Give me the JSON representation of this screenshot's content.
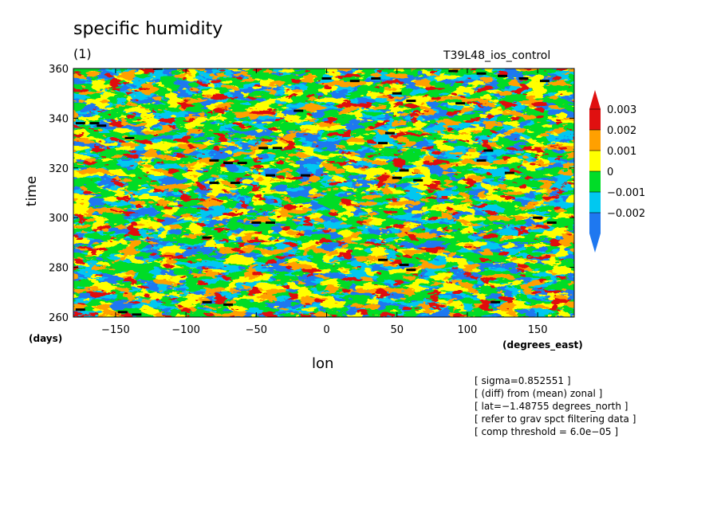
{
  "chart_data": {
    "type": "heatmap",
    "title": "specific humidity",
    "subtitle_left": "(1)",
    "subtitle_right": "T39L48_ios_control",
    "xlabel": "lon",
    "xunit": "(degrees_east)",
    "ylabel": "time",
    "yunit": "(days)",
    "xlim": [
      -180,
      176
    ],
    "ylim": [
      260,
      360
    ],
    "xticks": [
      -150,
      -100,
      -50,
      0,
      50,
      100,
      150
    ],
    "yticks": [
      260,
      280,
      300,
      320,
      340,
      360
    ],
    "colorbar": {
      "labels": [
        "0.003",
        "0.002",
        "0.001",
        "0",
        "−0.001",
        "−0.002"
      ],
      "colors": [
        "#1e78f0",
        "#00c8f0",
        "#00dc28",
        "#ffff00",
        "#ffa000",
        "#e01010"
      ],
      "triangles": {
        "top": "#e01010",
        "bottom": "#1e78f0"
      }
    },
    "notes": [
      "[ sigma=0.852551 ]",
      "[ (diff) from (mean) zonal ]",
      "[ lat=−1.48755 degrees_north ]",
      "[ refer to grav spct filtering data ]",
      "[ comp threshold = 6.0e−05 ]"
    ],
    "markers": [
      {
        "lon": -175,
        "time": 338
      },
      {
        "lon": -165,
        "time": 338
      },
      {
        "lon": -160,
        "time": 337
      },
      {
        "lon": -140,
        "time": 332
      },
      {
        "lon": -120,
        "time": 360
      },
      {
        "lon": -80,
        "time": 323
      },
      {
        "lon": -70,
        "time": 322
      },
      {
        "lon": -60,
        "time": 322
      },
      {
        "lon": -80,
        "time": 314
      },
      {
        "lon": -65,
        "time": 314
      },
      {
        "lon": -45,
        "time": 328
      },
      {
        "lon": -35,
        "time": 328
      },
      {
        "lon": -40,
        "time": 317
      },
      {
        "lon": -15,
        "time": 317
      },
      {
        "lon": -20,
        "time": 343
      },
      {
        "lon": -50,
        "time": 298
      },
      {
        "lon": -40,
        "time": 298
      },
      {
        "lon": -85,
        "time": 292
      },
      {
        "lon": -85,
        "time": 266
      },
      {
        "lon": -70,
        "time": 265
      },
      {
        "lon": -145,
        "time": 262
      },
      {
        "lon": -135,
        "time": 261
      },
      {
        "lon": -175,
        "time": 263
      },
      {
        "lon": 0,
        "time": 356
      },
      {
        "lon": 20,
        "time": 355
      },
      {
        "lon": 35,
        "time": 356
      },
      {
        "lon": 50,
        "time": 350
      },
      {
        "lon": 60,
        "time": 347
      },
      {
        "lon": 45,
        "time": 334
      },
      {
        "lon": 55,
        "time": 319
      },
      {
        "lon": 65,
        "time": 315
      },
      {
        "lon": 50,
        "time": 316
      },
      {
        "lon": 40,
        "time": 330
      },
      {
        "lon": 40,
        "time": 283
      },
      {
        "lon": 55,
        "time": 281
      },
      {
        "lon": 60,
        "time": 279
      },
      {
        "lon": 90,
        "time": 359
      },
      {
        "lon": 110,
        "time": 358
      },
      {
        "lon": 125,
        "time": 357
      },
      {
        "lon": 140,
        "time": 356
      },
      {
        "lon": 155,
        "time": 355
      },
      {
        "lon": 95,
        "time": 346
      },
      {
        "lon": 115,
        "time": 327
      },
      {
        "lon": 110,
        "time": 323
      },
      {
        "lon": 130,
        "time": 318
      },
      {
        "lon": 150,
        "time": 300
      },
      {
        "lon": 160,
        "time": 298
      },
      {
        "lon": 120,
        "time": 266
      }
    ]
  }
}
